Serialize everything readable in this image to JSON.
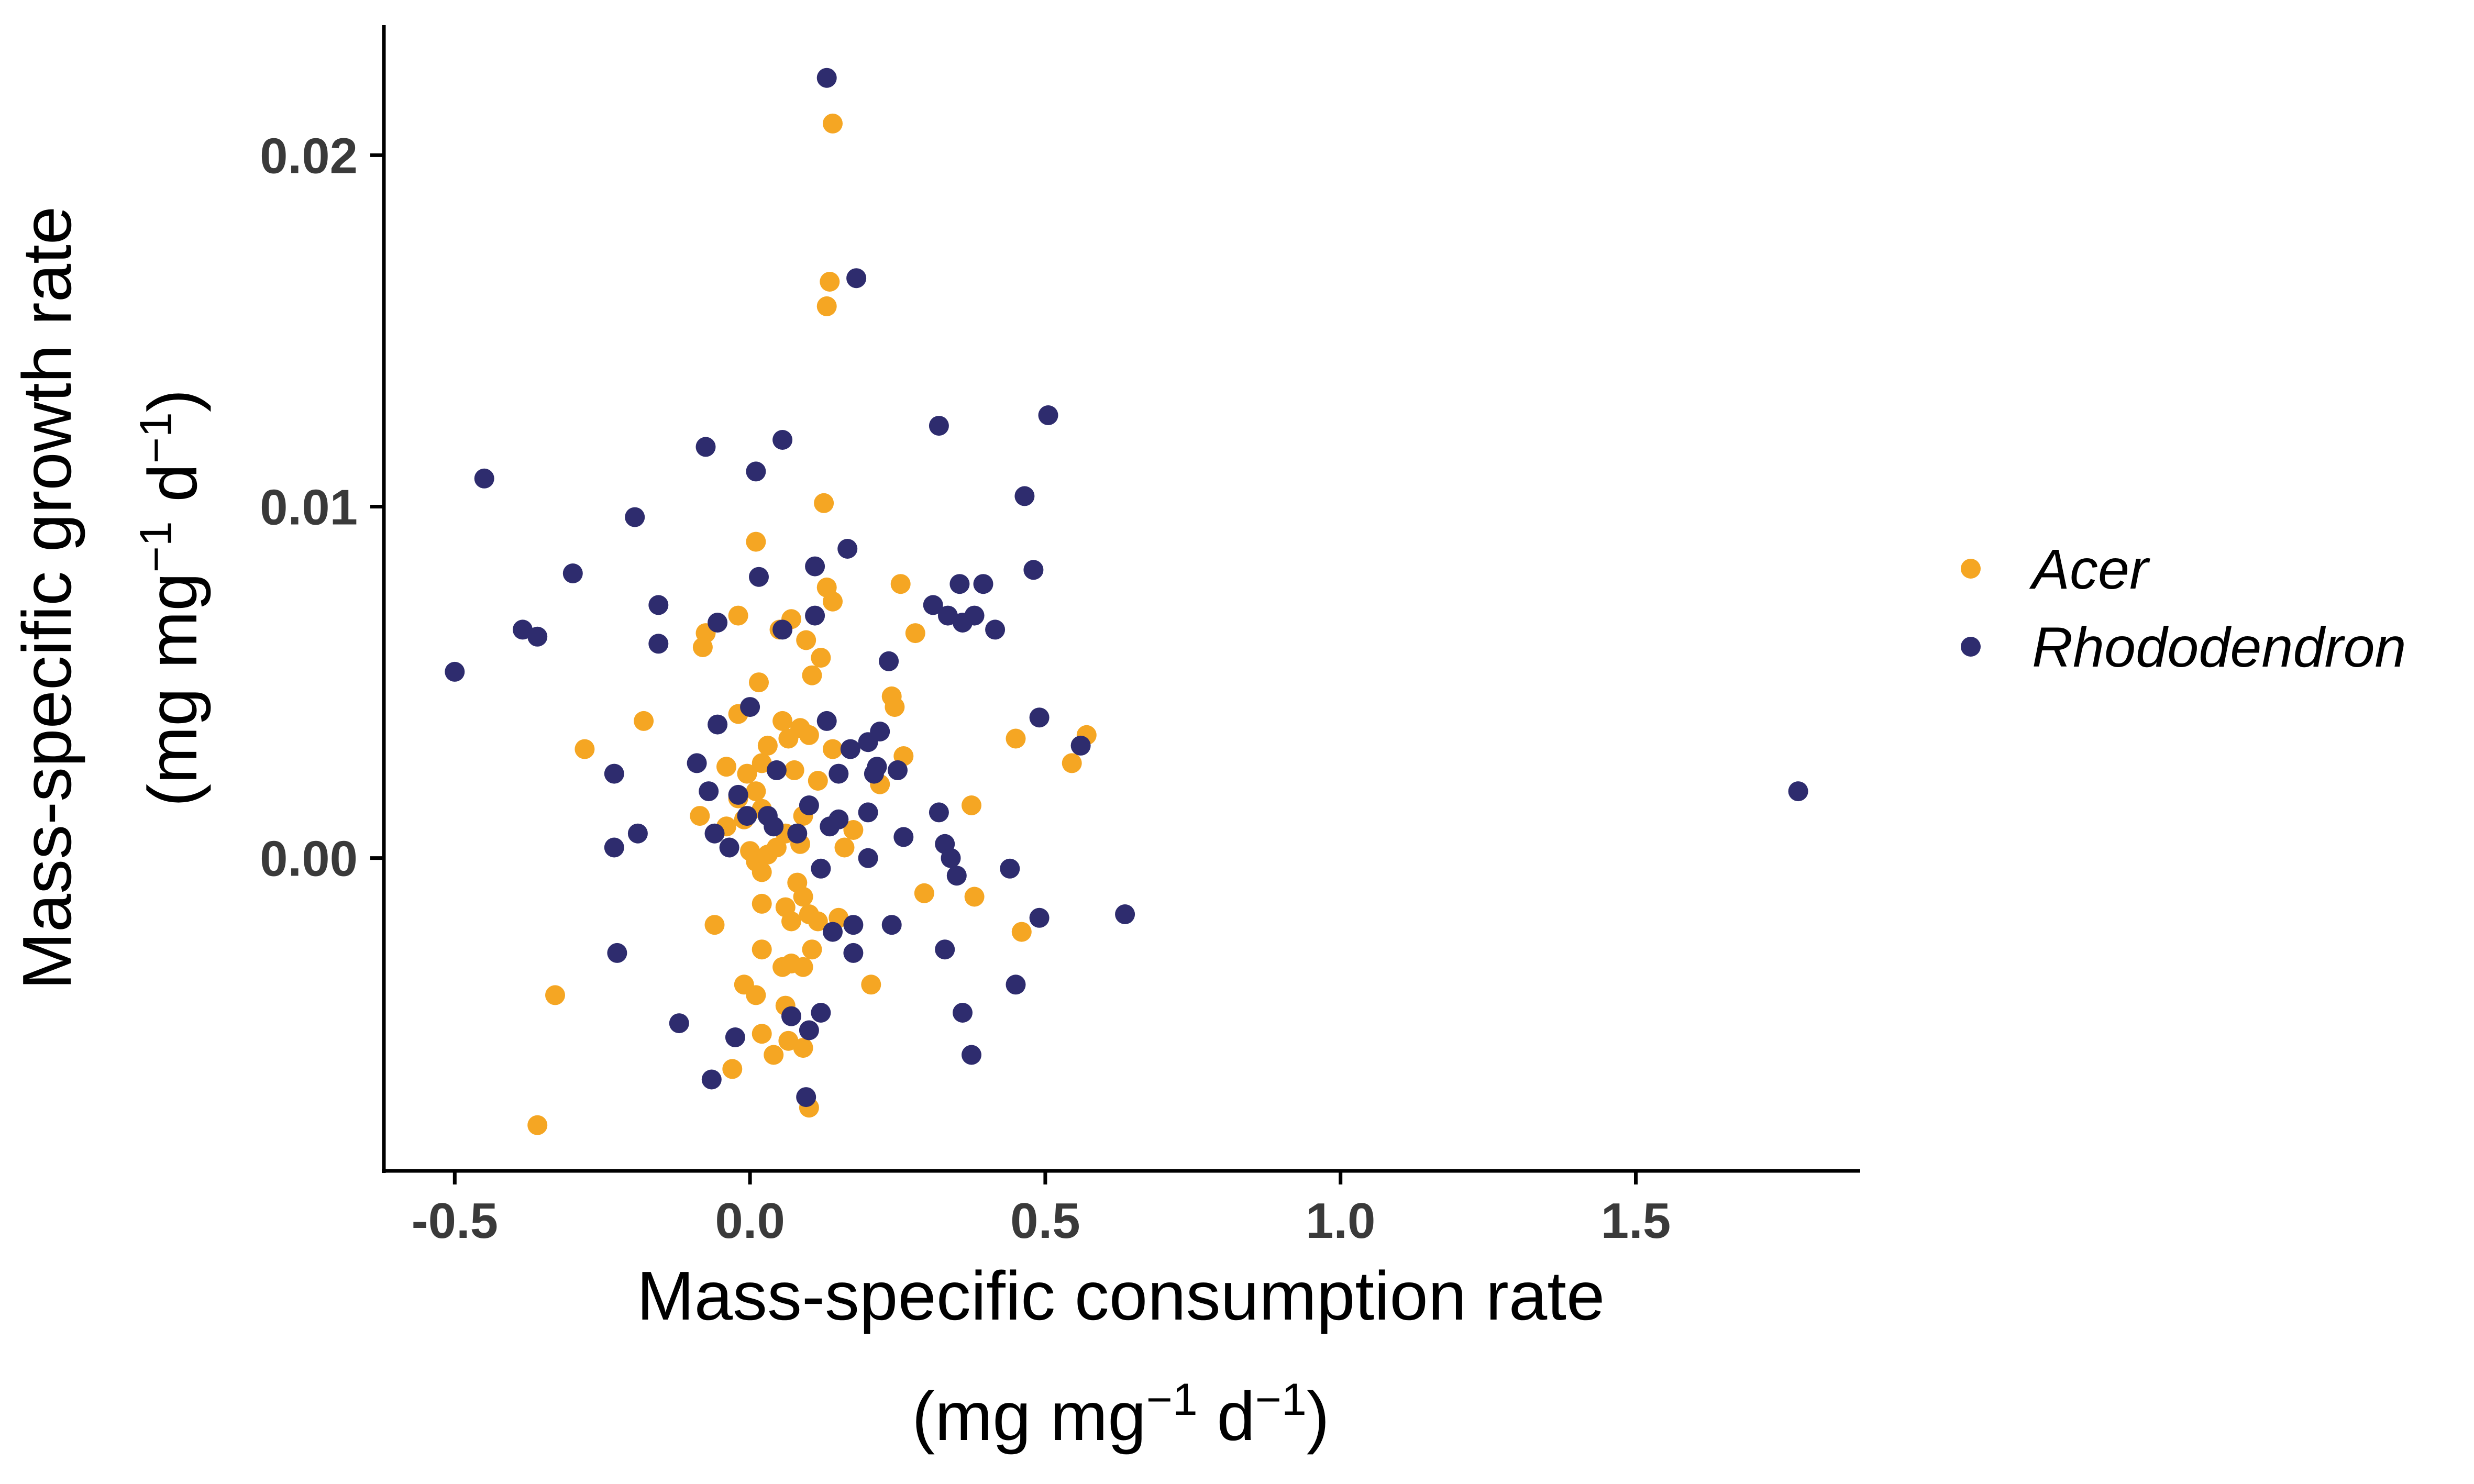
{
  "chart_data": {
    "type": "scatter",
    "title": "",
    "xlabel": {
      "line1": "Mass-specific consumption rate",
      "line2_open": "(mg mg",
      "line2_sup1": "−1",
      "line2_mid": " d",
      "line2_sup2": "−1",
      "line2_close": ")"
    },
    "ylabel": {
      "line1": "Mass-specific growth rate",
      "line2_open": "(mg mg",
      "line2_sup1": "−1",
      "line2_mid": " d",
      "line2_sup2": "−1",
      "line2_close": ")"
    },
    "xlim": [
      -0.62,
      1.88
    ],
    "ylim": [
      -0.0089,
      0.0237
    ],
    "x_ticks": [
      -0.5,
      0.0,
      0.5,
      1.0,
      1.5
    ],
    "x_tick_labels": [
      "-0.5",
      "0.0",
      "0.5",
      "1.0",
      "1.5"
    ],
    "y_ticks": [
      0.0,
      0.01,
      0.02
    ],
    "y_tick_labels": [
      "0.00",
      "0.01",
      "0.02"
    ],
    "grid": false,
    "legend_position": "right",
    "series": [
      {
        "name": "Acer",
        "color": "#F5A623",
        "points": [
          [
            0.14,
            0.0209
          ],
          [
            0.135,
            0.0164
          ],
          [
            0.13,
            0.0157
          ],
          [
            0.125,
            0.0101
          ],
          [
            0.01,
            0.009
          ],
          [
            0.13,
            0.0077
          ],
          [
            0.14,
            0.0073
          ],
          [
            0.255,
            0.0078
          ],
          [
            0.07,
            0.0068
          ],
          [
            -0.02,
            0.0069
          ],
          [
            0.05,
            0.0065
          ],
          [
            -0.075,
            0.0064
          ],
          [
            -0.08,
            0.006
          ],
          [
            0.095,
            0.0062
          ],
          [
            0.12,
            0.0057
          ],
          [
            0.28,
            0.0064
          ],
          [
            0.105,
            0.0052
          ],
          [
            0.015,
            0.005
          ],
          [
            0.24,
            0.0046
          ],
          [
            0.245,
            0.0043
          ],
          [
            -0.18,
            0.0039
          ],
          [
            -0.02,
            0.0041
          ],
          [
            0.055,
            0.0039
          ],
          [
            0.085,
            0.0037
          ],
          [
            0.1,
            0.0035
          ],
          [
            0.065,
            0.0034
          ],
          [
            0.03,
            0.0032
          ],
          [
            0.14,
            0.0031
          ],
          [
            0.57,
            0.0035
          ],
          [
            0.45,
            0.0034
          ],
          [
            0.545,
            0.0027
          ],
          [
            -0.28,
            0.0031
          ],
          [
            -0.04,
            0.0026
          ],
          [
            0.02,
            0.0027
          ],
          [
            -0.005,
            0.0024
          ],
          [
            0.075,
            0.0025
          ],
          [
            0.22,
            0.0021
          ],
          [
            0.26,
            0.0029
          ],
          [
            -0.02,
            0.0017
          ],
          [
            0.01,
            0.0019
          ],
          [
            0.02,
            0.0014
          ],
          [
            0.09,
            0.0012
          ],
          [
            0.115,
            0.0022
          ],
          [
            0.375,
            0.0015
          ],
          [
            -0.085,
            0.0012
          ],
          [
            -0.04,
            0.0009
          ],
          [
            -0.01,
            0.0011
          ],
          [
            0.06,
            0.0007
          ],
          [
            0.085,
            0.0004
          ],
          [
            0.175,
            0.0008
          ],
          [
            0.0,
            0.0002
          ],
          [
            0.01,
            -0.0001
          ],
          [
            0.03,
            0.0001
          ],
          [
            0.045,
            0.0003
          ],
          [
            0.02,
            -0.0004
          ],
          [
            0.08,
            -0.0007
          ],
          [
            0.09,
            -0.0011
          ],
          [
            0.16,
            0.0003
          ],
          [
            0.295,
            -0.001
          ],
          [
            0.38,
            -0.0011
          ],
          [
            0.46,
            -0.0021
          ],
          [
            0.02,
            -0.0013
          ],
          [
            0.06,
            -0.0014
          ],
          [
            0.1,
            -0.0016
          ],
          [
            0.15,
            -0.0017
          ],
          [
            -0.06,
            -0.0019
          ],
          [
            0.07,
            -0.0018
          ],
          [
            0.115,
            -0.0018
          ],
          [
            0.02,
            -0.0026
          ],
          [
            0.055,
            -0.0031
          ],
          [
            0.09,
            -0.0031
          ],
          [
            0.205,
            -0.0036
          ],
          [
            -0.01,
            -0.0036
          ],
          [
            0.01,
            -0.0039
          ],
          [
            0.06,
            -0.0042
          ],
          [
            0.07,
            -0.003
          ],
          [
            0.105,
            -0.0026
          ],
          [
            0.02,
            -0.005
          ],
          [
            0.065,
            -0.0052
          ],
          [
            0.04,
            -0.0056
          ],
          [
            0.09,
            -0.0054
          ],
          [
            -0.03,
            -0.006
          ],
          [
            -0.33,
            -0.0039
          ],
          [
            -0.36,
            -0.0076
          ],
          [
            0.1,
            -0.0071
          ]
        ]
      },
      {
        "name": "Rhododendron",
        "color": "#2E2C6E",
        "points": [
          [
            0.13,
            0.0222
          ],
          [
            0.18,
            0.0165
          ],
          [
            0.505,
            0.0126
          ],
          [
            0.32,
            0.0123
          ],
          [
            -0.075,
            0.0117
          ],
          [
            0.055,
            0.0119
          ],
          [
            0.01,
            0.011
          ],
          [
            -0.45,
            0.0108
          ],
          [
            0.465,
            0.0103
          ],
          [
            -0.195,
            0.0097
          ],
          [
            0.165,
            0.0088
          ],
          [
            -0.3,
            0.0081
          ],
          [
            0.11,
            0.0083
          ],
          [
            0.015,
            0.008
          ],
          [
            0.48,
            0.0082
          ],
          [
            0.355,
            0.0078
          ],
          [
            0.395,
            0.0078
          ],
          [
            -0.155,
            0.0072
          ],
          [
            0.31,
            0.0072
          ],
          [
            0.335,
            0.0069
          ],
          [
            0.36,
            0.0067
          ],
          [
            0.38,
            0.0069
          ],
          [
            0.415,
            0.0065
          ],
          [
            0.11,
            0.0069
          ],
          [
            -0.385,
            0.0065
          ],
          [
            -0.36,
            0.0063
          ],
          [
            -0.055,
            0.0067
          ],
          [
            0.055,
            0.0065
          ],
          [
            -0.155,
            0.0061
          ],
          [
            0.235,
            0.0056
          ],
          [
            -0.5,
            0.0053
          ],
          [
            0.49,
            0.004
          ],
          [
            0.56,
            0.0032
          ],
          [
            0.2,
            0.0033
          ],
          [
            0.0,
            0.0043
          ],
          [
            0.13,
            0.0039
          ],
          [
            0.22,
            0.0036
          ],
          [
            0.17,
            0.0031
          ],
          [
            -0.055,
            0.0038
          ],
          [
            -0.09,
            0.0027
          ],
          [
            -0.23,
            0.0024
          ],
          [
            0.045,
            0.0025
          ],
          [
            0.15,
            0.0024
          ],
          [
            0.215,
            0.0026
          ],
          [
            0.25,
            0.0025
          ],
          [
            0.21,
            0.0024
          ],
          [
            -0.07,
            0.0019
          ],
          [
            -0.02,
            0.0018
          ],
          [
            -0.005,
            0.0012
          ],
          [
            0.03,
            0.0012
          ],
          [
            0.1,
            0.0015
          ],
          [
            0.15,
            0.0011
          ],
          [
            0.2,
            0.0013
          ],
          [
            0.32,
            0.0013
          ],
          [
            -0.19,
            0.0007
          ],
          [
            -0.06,
            0.0007
          ],
          [
            0.04,
            0.0009
          ],
          [
            0.08,
            0.0007
          ],
          [
            0.135,
            0.0009
          ],
          [
            0.26,
            0.0006
          ],
          [
            -0.23,
            0.0003
          ],
          [
            -0.035,
            0.0003
          ],
          [
            0.12,
            -0.0003
          ],
          [
            0.2,
            0.0
          ],
          [
            0.33,
            0.0004
          ],
          [
            0.34,
            0.0
          ],
          [
            0.35,
            -0.0005
          ],
          [
            0.44,
            -0.0003
          ],
          [
            0.49,
            -0.0017
          ],
          [
            0.635,
            -0.0016
          ],
          [
            1.775,
            0.0019
          ],
          [
            0.14,
            -0.0021
          ],
          [
            0.175,
            -0.0019
          ],
          [
            0.24,
            -0.0019
          ],
          [
            0.175,
            -0.0027
          ],
          [
            -0.225,
            -0.0027
          ],
          [
            0.33,
            -0.0026
          ],
          [
            0.45,
            -0.0036
          ],
          [
            -0.12,
            -0.0047
          ],
          [
            -0.025,
            -0.0051
          ],
          [
            0.07,
            -0.0045
          ],
          [
            0.1,
            -0.0049
          ],
          [
            0.12,
            -0.0044
          ],
          [
            0.36,
            -0.0044
          ],
          [
            0.375,
            -0.0056
          ],
          [
            -0.065,
            -0.0063
          ],
          [
            0.095,
            -0.0068
          ]
        ]
      }
    ]
  }
}
